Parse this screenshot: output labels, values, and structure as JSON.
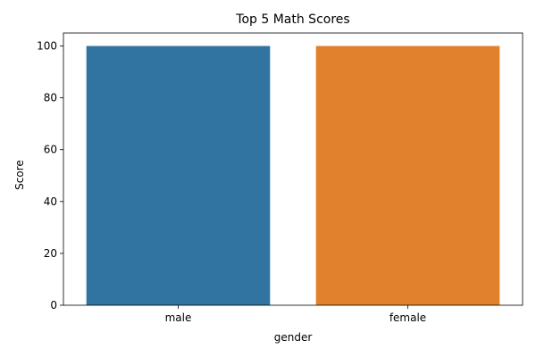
{
  "chart_data": {
    "type": "bar",
    "title": "Top 5 Math Scores",
    "xlabel": "gender",
    "ylabel": "Score",
    "categories": [
      "male",
      "female"
    ],
    "values": [
      100,
      100
    ],
    "colors": [
      "#3274a1",
      "#e1812c"
    ],
    "ylim": [
      0,
      105
    ],
    "yticks": [
      0,
      20,
      40,
      60,
      80,
      100
    ],
    "grid": false,
    "legend": "none"
  }
}
